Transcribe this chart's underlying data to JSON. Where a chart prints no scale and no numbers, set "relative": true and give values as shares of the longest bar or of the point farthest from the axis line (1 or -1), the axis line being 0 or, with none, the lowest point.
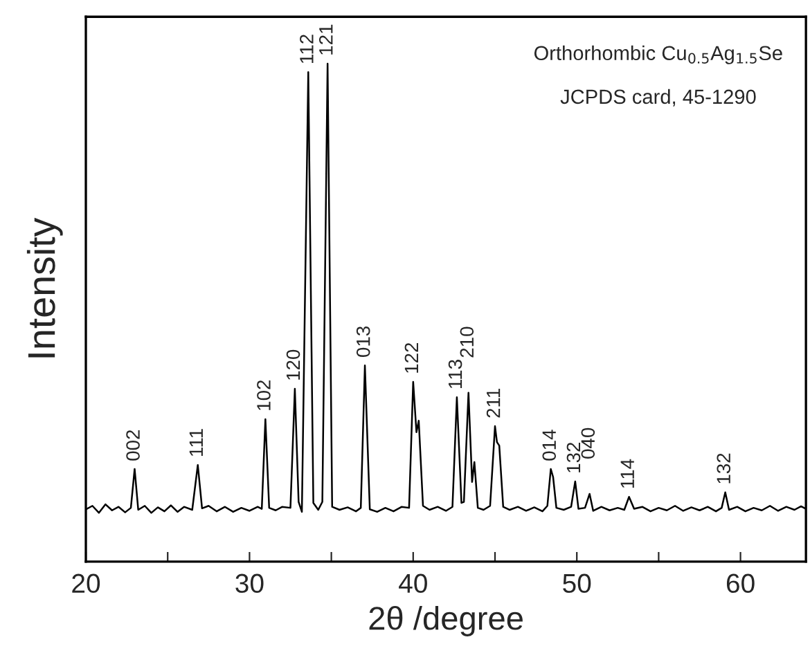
{
  "chart_data": {
    "type": "line",
    "relative": true,
    "xlabel": "2θ /degree",
    "ylabel": "Intensity",
    "xlim": [
      20,
      64
    ],
    "xticks": [
      20,
      {
        "value": 25,
        "label": null
      },
      30,
      {
        "value": 35,
        "label": null
      },
      40,
      {
        "value": 45,
        "label": null
      },
      50,
      {
        "value": 55,
        "label": null
      },
      60
    ],
    "tick_labels": "x",
    "grid": false,
    "x": [
      20.0,
      20.4,
      20.8,
      21.2,
      21.6,
      22.0,
      22.4,
      22.75,
      22.98,
      23.2,
      23.6,
      24.0,
      24.4,
      24.8,
      25.2,
      25.6,
      26.0,
      26.5,
      26.84,
      27.1,
      27.5,
      28.0,
      28.5,
      29.0,
      29.5,
      30.0,
      30.5,
      30.75,
      30.97,
      31.2,
      31.6,
      32.0,
      32.5,
      32.77,
      33.0,
      33.2,
      33.59,
      33.9,
      34.2,
      34.45,
      34.77,
      35.05,
      35.5,
      36.0,
      36.5,
      36.8,
      37.05,
      37.35,
      37.8,
      38.3,
      38.8,
      39.3,
      39.75,
      40.0,
      40.2,
      40.34,
      40.6,
      41.0,
      41.5,
      42.0,
      42.4,
      42.67,
      42.95,
      43.1,
      43.38,
      43.6,
      43.74,
      43.95,
      44.3,
      44.7,
      45.0,
      45.12,
      45.26,
      45.5,
      45.9,
      46.4,
      46.9,
      47.4,
      47.9,
      48.2,
      48.41,
      48.55,
      48.75,
      49.2,
      49.65,
      49.9,
      50.1,
      50.5,
      50.78,
      51.0,
      51.5,
      52.0,
      52.5,
      52.9,
      53.19,
      53.5,
      54.0,
      54.5,
      55.0,
      55.5,
      56.0,
      56.5,
      57.0,
      57.5,
      58.0,
      58.5,
      58.85,
      59.07,
      59.3,
      59.8,
      60.3,
      60.8,
      61.3,
      61.8,
      62.3,
      62.8,
      63.3,
      63.7,
      64.0
    ],
    "series": [
      {
        "color": "#000000",
        "values": [
          0.105,
          0.112,
          0.098,
          0.115,
          0.103,
          0.11,
          0.099,
          0.108,
          0.186,
          0.104,
          0.112,
          0.098,
          0.109,
          0.101,
          0.113,
          0.1,
          0.11,
          0.104,
          0.194,
          0.107,
          0.112,
          0.101,
          0.11,
          0.1,
          0.108,
          0.102,
          0.11,
          0.106,
          0.286,
          0.108,
          0.103,
          0.11,
          0.108,
          0.347,
          0.12,
          0.1,
          0.983,
          0.118,
          0.104,
          0.12,
          1.0,
          0.11,
          0.104,
          0.109,
          0.101,
          0.108,
          0.394,
          0.105,
          0.1,
          0.108,
          0.101,
          0.11,
          0.108,
          0.361,
          0.26,
          0.283,
          0.112,
          0.104,
          0.11,
          0.102,
          0.11,
          0.33,
          0.118,
          0.12,
          0.339,
          0.16,
          0.2,
          0.108,
          0.104,
          0.112,
          0.272,
          0.24,
          0.233,
          0.11,
          0.104,
          0.11,
          0.102,
          0.109,
          0.101,
          0.112,
          0.186,
          0.17,
          0.108,
          0.104,
          0.11,
          0.161,
          0.106,
          0.108,
          0.136,
          0.102,
          0.11,
          0.103,
          0.108,
          0.104,
          0.13,
          0.106,
          0.11,
          0.101,
          0.108,
          0.103,
          0.112,
          0.102,
          0.109,
          0.103,
          0.11,
          0.101,
          0.108,
          0.139,
          0.104,
          0.11,
          0.101,
          0.108,
          0.103,
          0.112,
          0.102,
          0.11,
          0.104,
          0.111,
          0.106
        ]
      }
    ],
    "annotations": [
      "Orthorhombic Cu$_{0.5}$Ag$_{1.5}$Se",
      "JCPDS card, 45-1290",
      {
        "text": "002",
        "x": 22.98,
        "y": 0.186
      },
      {
        "text": "111",
        "x": 26.84,
        "y": 0.194
      },
      {
        "text": "102",
        "x": 30.97,
        "y": 0.286
      },
      {
        "text": "120",
        "x": 32.77,
        "y": 0.347
      },
      {
        "text": "112",
        "x": 33.59,
        "y": 0.983
      },
      {
        "text": "121",
        "x": 34.77,
        "y": 1.0
      },
      {
        "text": "013",
        "x": 37.05,
        "y": 0.394
      },
      {
        "text": "122",
        "x": 40.0,
        "y": 0.361
      },
      {
        "text": "113",
        "x": 42.67,
        "y": 0.33
      },
      {
        "text": "210",
        "x": 43.38,
        "y": 0.339
      },
      {
        "text": "211",
        "x": 45.0,
        "y": 0.272
      },
      {
        "text": "014",
        "x": 48.41,
        "y": 0.186
      },
      {
        "text": "132",
        "x": 49.9,
        "y": 0.161
      },
      {
        "text": "040",
        "x": 50.78,
        "y": 0.136
      },
      {
        "text": "114",
        "x": 53.19,
        "y": 0.13
      },
      {
        "text": "132",
        "x": 59.07,
        "y": 0.139
      }
    ]
  }
}
